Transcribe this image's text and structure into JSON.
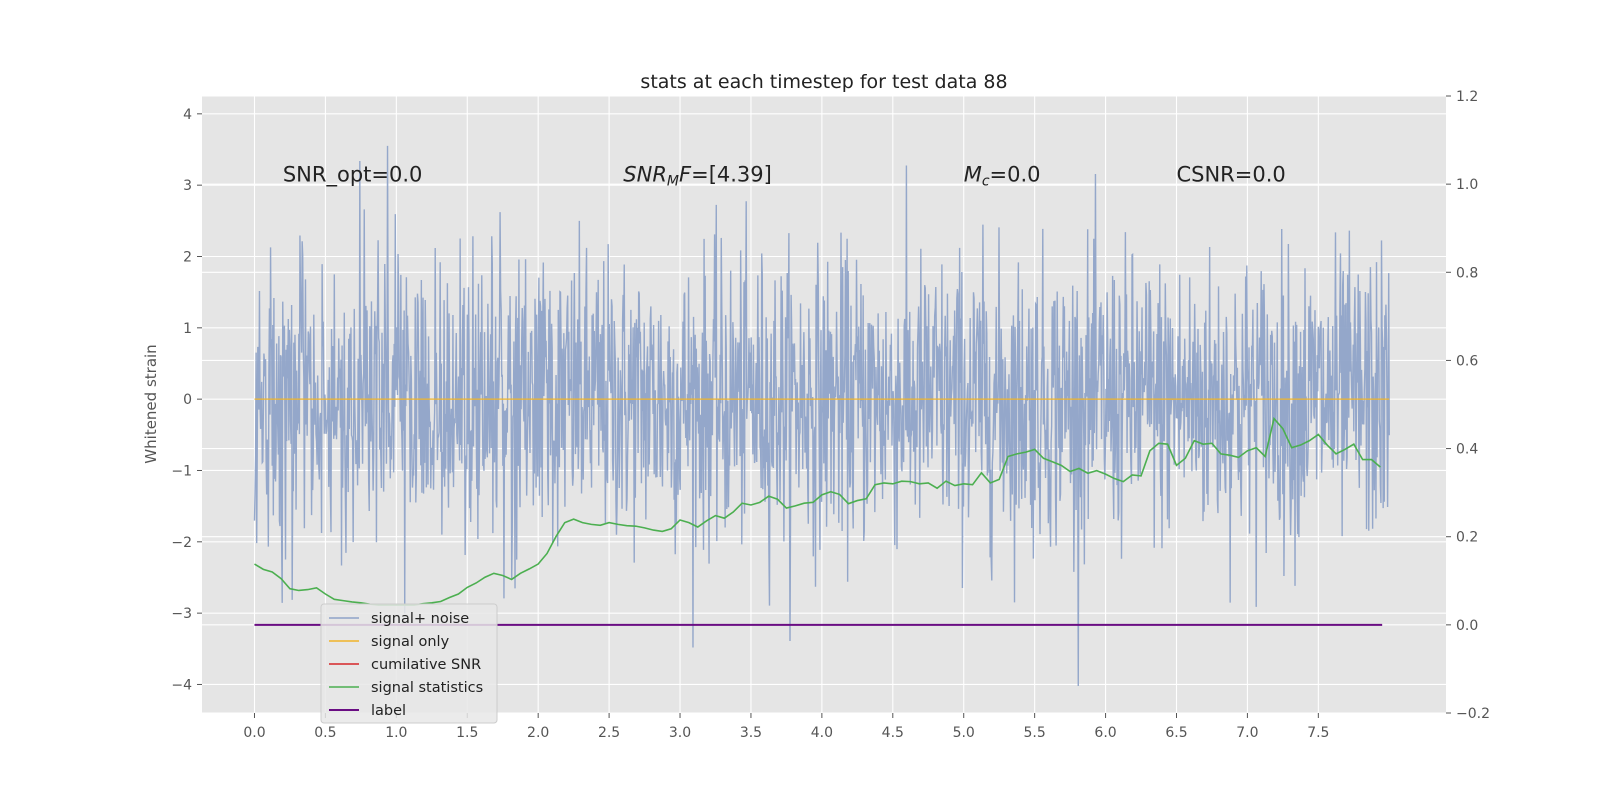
{
  "chart_data": {
    "type": "line",
    "title": "stats at each timestep for test data 88",
    "xlabel": "",
    "ylabel": "Whitened strain",
    "y2label": "",
    "xlim": [
      -0.37,
      8.4
    ],
    "ylim": [
      -4.4,
      4.25
    ],
    "y2lim": [
      -0.2,
      1.2
    ],
    "x_ticks": [
      0.0,
      0.5,
      1.0,
      1.5,
      2.0,
      2.5,
      3.0,
      3.5,
      4.0,
      4.5,
      5.0,
      5.5,
      6.0,
      6.5,
      7.0,
      7.5
    ],
    "x_tick_labels": [
      "0.0",
      "0.5",
      "1.0",
      "1.5",
      "2.0",
      "2.5",
      "3.0",
      "3.5",
      "4.0",
      "4.5",
      "5.0",
      "5.5",
      "6.0",
      "6.5",
      "7.0",
      "7.5"
    ],
    "y_ticks": [
      -4,
      -3,
      -2,
      -1,
      0,
      1,
      2,
      3,
      4
    ],
    "y_tick_labels": [
      "−4",
      "−3",
      "−2",
      "−1",
      "0",
      "1",
      "2",
      "3",
      "4"
    ],
    "y2_ticks": [
      -0.2,
      0.0,
      0.2,
      0.4,
      0.6,
      0.8,
      1.0,
      1.2
    ],
    "y2_tick_labels": [
      "−0.2",
      "0.0",
      "0.2",
      "0.4",
      "0.6",
      "0.8",
      "1.0",
      "1.2"
    ],
    "grid": true,
    "legend_position": "lower-left",
    "colors": {
      "noise": "#8fa3c8",
      "signal": "#f0b429",
      "cumulative_snr": "#d62728",
      "signal_statistics": "#4caf50",
      "label": "#6a0d83",
      "background": "#e5e5e5",
      "grid": "#ffffff"
    },
    "annotations": [
      {
        "id": "snr-opt",
        "text": "SNR_opt=0.0",
        "x": 0.2,
        "y": 3.05
      },
      {
        "id": "snr-mf",
        "text": "SNRMF=[4.39]",
        "x": 2.6,
        "y": 3.05
      },
      {
        "id": "mc",
        "text": "Mc=0.0",
        "x": 5.0,
        "y": 3.05
      },
      {
        "id": "csnr",
        "text": "CSNR=0.0",
        "x": 6.5,
        "y": 3.05
      }
    ],
    "series": [
      {
        "name": "signal+ noise",
        "axis": "left",
        "style": "noise",
        "x_start": 0.0,
        "x_end": 8.0,
        "n_points": 2048,
        "spread_std": 1.0,
        "y_min": -4.05,
        "y_max": 3.92
      },
      {
        "name": "signal only",
        "axis": "left",
        "x": [
          0.0,
          8.0
        ],
        "values": [
          0.0,
          0.0
        ]
      },
      {
        "name": "cumilative SNR",
        "axis": "right",
        "x": [],
        "values": []
      },
      {
        "name": "signal statistics",
        "axis": "right",
        "x": [
          0.0,
          0.0625,
          0.125,
          0.1875,
          0.25,
          0.3125,
          0.375,
          0.4375,
          0.5,
          0.5625,
          0.625,
          0.6875,
          0.75,
          0.8125,
          0.875,
          0.9375,
          1.0,
          1.0625,
          1.125,
          1.1875,
          1.25,
          1.3125,
          1.375,
          1.4375,
          1.5,
          1.5625,
          1.625,
          1.6875,
          1.75,
          1.8125,
          1.875,
          1.9375,
          2.0,
          2.0625,
          2.125,
          2.1875,
          2.25,
          2.3125,
          2.375,
          2.4375,
          2.5,
          2.5625,
          2.625,
          2.6875,
          2.75,
          2.8125,
          2.875,
          2.9375,
          3.0,
          3.0625,
          3.125,
          3.1875,
          3.25,
          3.3125,
          3.375,
          3.4375,
          3.5,
          3.5625,
          3.625,
          3.6875,
          3.75,
          3.8125,
          3.875,
          3.9375,
          4.0,
          4.0625,
          4.125,
          4.1875,
          4.25,
          4.3125,
          4.375,
          4.4375,
          4.5,
          4.5625,
          4.625,
          4.6875,
          4.75,
          4.8125,
          4.875,
          4.9375,
          5.0,
          5.0625,
          5.125,
          5.1875,
          5.25,
          5.3125,
          5.375,
          5.4375,
          5.5,
          5.5625,
          5.625,
          5.6875,
          5.75,
          5.8125,
          5.875,
          5.9375,
          6.0,
          6.0625,
          6.125,
          6.1875,
          6.25,
          6.3125,
          6.375,
          6.4375,
          6.5,
          6.5625,
          6.625,
          6.6875,
          6.75,
          6.8125,
          6.875,
          6.9375,
          7.0,
          7.0625,
          7.125,
          7.1875,
          7.25,
          7.3125,
          7.375,
          7.4375,
          7.5,
          7.5625,
          7.625,
          7.6875,
          7.75,
          7.8125,
          7.875,
          7.9375
        ],
        "values": [
          0.138,
          0.126,
          0.12,
          0.105,
          0.082,
          0.078,
          0.08,
          0.084,
          0.07,
          0.058,
          0.055,
          0.052,
          0.05,
          0.047,
          0.045,
          0.045,
          0.045,
          0.045,
          0.045,
          0.048,
          0.05,
          0.053,
          0.062,
          0.07,
          0.085,
          0.095,
          0.108,
          0.117,
          0.112,
          0.103,
          0.117,
          0.127,
          0.138,
          0.162,
          0.2,
          0.232,
          0.24,
          0.232,
          0.228,
          0.226,
          0.232,
          0.228,
          0.225,
          0.224,
          0.22,
          0.215,
          0.212,
          0.218,
          0.238,
          0.232,
          0.222,
          0.236,
          0.248,
          0.242,
          0.256,
          0.276,
          0.272,
          0.278,
          0.292,
          0.285,
          0.265,
          0.27,
          0.276,
          0.278,
          0.295,
          0.302,
          0.296,
          0.275,
          0.282,
          0.286,
          0.318,
          0.322,
          0.32,
          0.326,
          0.325,
          0.32,
          0.322,
          0.31,
          0.326,
          0.316,
          0.32,
          0.318,
          0.345,
          0.322,
          0.33,
          0.382,
          0.388,
          0.392,
          0.398,
          0.378,
          0.37,
          0.362,
          0.348,
          0.355,
          0.344,
          0.35,
          0.342,
          0.332,
          0.325,
          0.34,
          0.338,
          0.395,
          0.412,
          0.41,
          0.362,
          0.378,
          0.418,
          0.41,
          0.412,
          0.388,
          0.385,
          0.38,
          0.395,
          0.402,
          0.382,
          0.468,
          0.445,
          0.402,
          0.408,
          0.418,
          0.432,
          0.408,
          0.388,
          0.398,
          0.41,
          0.375,
          0.375,
          0.358
        ]
      },
      {
        "name": "label",
        "axis": "right",
        "x": [
          0.0,
          7.95
        ],
        "values": [
          0.0,
          0.0
        ]
      }
    ],
    "legend": [
      {
        "key": "noise",
        "label": "signal+ noise"
      },
      {
        "key": "signal",
        "label": "signal only"
      },
      {
        "key": "cumulative_snr",
        "label": "cumilative SNR"
      },
      {
        "key": "signal_statistics",
        "label": "signal statistics"
      },
      {
        "key": "label",
        "label": "label"
      }
    ]
  }
}
